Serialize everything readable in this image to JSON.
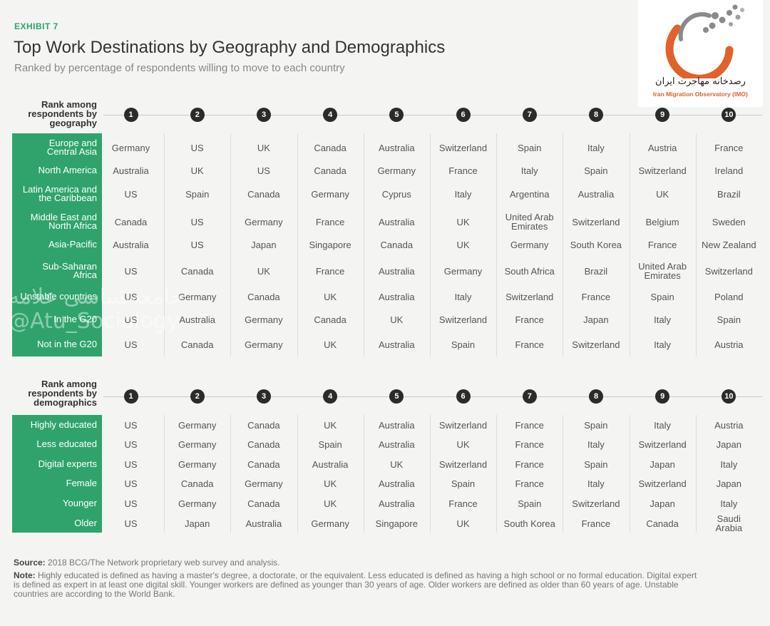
{
  "header": {
    "exhibit": "EXHIBIT 7",
    "title": "Top Work Destinations by Geography and Demographics",
    "subtitle": "Ranked by percentage of respondents willing to move to each country"
  },
  "logo": {
    "name_fa": "رصدخانه مهاجرت ایران",
    "name_en": "Iran Migration Observatory (IMO)",
    "colors": {
      "orange": "#e2622b",
      "gray": "#8a8a8a"
    }
  },
  "watermark": {
    "line1": "جامعه‌شناسی علامه",
    "line2": "@Atu_Sociology"
  },
  "chart_data": {
    "type": "table",
    "ranks": [
      "1",
      "2",
      "3",
      "4",
      "5",
      "6",
      "7",
      "8",
      "9",
      "10"
    ],
    "sections": [
      {
        "heading_lines": [
          "Rank among",
          "respondents by",
          "geography"
        ],
        "rows": [
          {
            "label_lines": [
              "Europe and",
              "Central Asia"
            ],
            "values": [
              "Germany",
              "US",
              "UK",
              "Canada",
              "Australia",
              "Switzerland",
              "Spain",
              "Italy",
              "Austria",
              "France"
            ]
          },
          {
            "label_lines": [
              "North America"
            ],
            "values": [
              "Australia",
              "UK",
              "US",
              "Canada",
              "Germany",
              "France",
              "Italy",
              "Spain",
              "Switzerland",
              "Ireland"
            ]
          },
          {
            "label_lines": [
              "Latin America and",
              "the Caribbean"
            ],
            "values": [
              "US",
              "Spain",
              "Canada",
              "Germany",
              "Cyprus",
              "Italy",
              "Argentina",
              "Australia",
              "UK",
              "Brazil"
            ]
          },
          {
            "label_lines": [
              "Middle East and",
              "North Africa"
            ],
            "values": [
              "Canada",
              "US",
              "Germany",
              "France",
              "Australia",
              "UK",
              "United Arab Emirates",
              "Switzerland",
              "Belgium",
              "Sweden"
            ]
          },
          {
            "label_lines": [
              "Asia-Pacific"
            ],
            "values": [
              "Australia",
              "US",
              "Japan",
              "Singapore",
              "Canada",
              "UK",
              "Germany",
              "South Korea",
              "France",
              "New Zealand"
            ]
          },
          {
            "label_lines": [
              "Sub-Saharan",
              "Africa"
            ],
            "values": [
              "US",
              "Canada",
              "UK",
              "France",
              "Australia",
              "Germany",
              "South Africa",
              "Brazil",
              "United Arab Emirates",
              "Switzerland"
            ]
          },
          {
            "label_lines": [
              "Unstable countries"
            ],
            "values": [
              "US",
              "Germany",
              "Canada",
              "UK",
              "Australia",
              "Italy",
              "Switzerland",
              "France",
              "Spain",
              "Poland"
            ]
          },
          {
            "label_lines": [
              "In the G20"
            ],
            "values": [
              "US",
              "Australia",
              "Germany",
              "Canada",
              "UK",
              "Switzerland",
              "France",
              "Japan",
              "Italy",
              "Spain"
            ]
          },
          {
            "label_lines": [
              "Not in the G20"
            ],
            "values": [
              "US",
              "Canada",
              "Germany",
              "UK",
              "Australia",
              "Spain",
              "France",
              "Switzerland",
              "Italy",
              "Austria"
            ]
          }
        ]
      },
      {
        "heading_lines": [
          "Rank among",
          "respondents by",
          "demographics"
        ],
        "rows": [
          {
            "label_lines": [
              "Highly educated"
            ],
            "values": [
              "US",
              "Germany",
              "Canada",
              "UK",
              "Australia",
              "Switzerland",
              "France",
              "Spain",
              "Italy",
              "Austria"
            ]
          },
          {
            "label_lines": [
              "Less educated"
            ],
            "values": [
              "US",
              "Germany",
              "Canada",
              "Spain",
              "Australia",
              "UK",
              "France",
              "Italy",
              "Switzerland",
              "Japan"
            ]
          },
          {
            "label_lines": [
              "Digital experts"
            ],
            "values": [
              "US",
              "Germany",
              "Canada",
              "Australia",
              "UK",
              "Switzerland",
              "France",
              "Spain",
              "Japan",
              "Italy"
            ]
          },
          {
            "label_lines": [
              "Female"
            ],
            "values": [
              "US",
              "Canada",
              "Germany",
              "UK",
              "Australia",
              "Spain",
              "France",
              "Italy",
              "Switzerland",
              "Japan"
            ]
          },
          {
            "label_lines": [
              "Younger"
            ],
            "values": [
              "US",
              "Germany",
              "Canada",
              "UK",
              "Australia",
              "France",
              "Spain",
              "Switzerland",
              "Japan",
              "Italy"
            ]
          },
          {
            "label_lines": [
              "Older"
            ],
            "values": [
              "US",
              "Japan",
              "Australia",
              "Germany",
              "Singapore",
              "UK",
              "South Korea",
              "France",
              "Canada",
              "Saudi Arabia"
            ]
          }
        ]
      }
    ]
  },
  "footer": {
    "source_label": "Source:",
    "source_text": "2018 BCG/The Network proprietary web survey and analysis.",
    "note_label": "Note:",
    "note_text": "Highly educated is defined as having a master's degree, a doctorate, or the equivalent. Less educated is defined as having a high school or no formal education. Digital expert is defined as expert in at least one digital skill. Younger workers are defined as younger than 30 years of age. Older workers are defined as older than 60 years of age. Unstable countries are according to the World Bank."
  }
}
